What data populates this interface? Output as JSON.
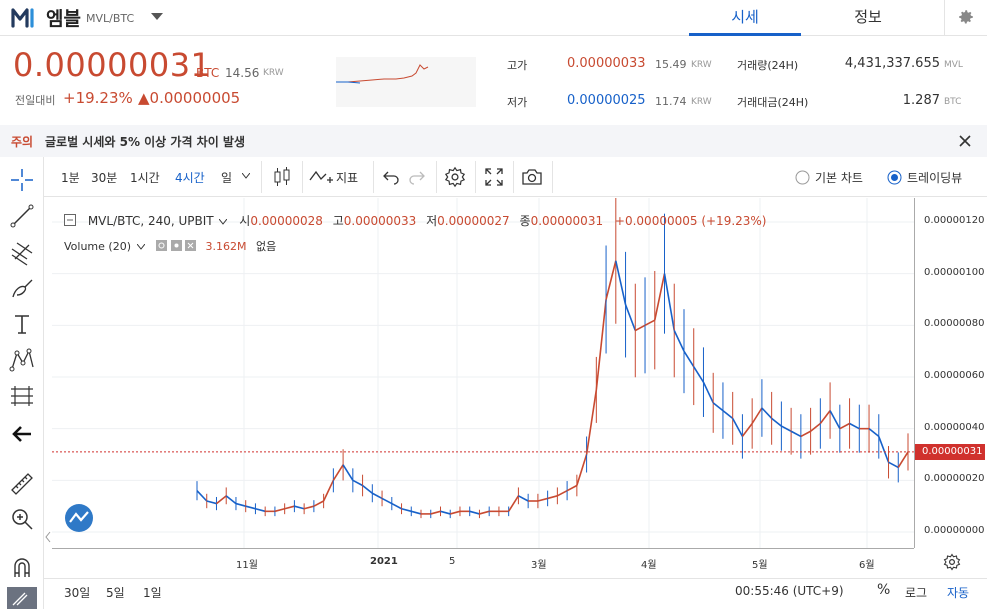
{
  "header": {
    "coin_name": "엠블",
    "coin_pair": "MVL/BTC",
    "tabs": [
      {
        "label": "시세"
      },
      {
        "label": "정보"
      }
    ]
  },
  "summary": {
    "price": "0.00000031",
    "price_unit": "BTC",
    "price_krw": "14.56",
    "krw_unit": "KRW",
    "change_label": "전일대비",
    "change_pct": "+19.23%",
    "change_value": "▲0.00000005",
    "high_label": "고가",
    "high_value": "0.00000033",
    "high_krw": "15.49",
    "low_label": "저가",
    "low_value": "0.00000025",
    "low_krw": "11.74",
    "volume_label": "거래량(24H)",
    "volume_value": "4,431,337.655",
    "volume_unit": "MVL",
    "amount_label": "거래대금(24H)",
    "amount_value": "1.287",
    "amount_unit": "BTC"
  },
  "warning": {
    "tag": "주의",
    "text": "글로벌 시세와 5% 이상 가격 차이 발생"
  },
  "toolbar": {
    "intervals": [
      "1분",
      "30분",
      "1시간",
      "4시간",
      "일"
    ],
    "indicators_label": "지표",
    "basic_chart_label": "기본 차트",
    "tradingview_label": "트레이딩뷰"
  },
  "legend": {
    "symbol": "MVL/BTC, 240, UPBIT",
    "open_label": "시",
    "open": "0.00000028",
    "high_label": "고",
    "high": "0.00000033",
    "low_label": "저",
    "low": "0.00000027",
    "close_label": "종",
    "close": "0.00000031",
    "change": "+0.00000005 (+19.23%)",
    "volume_label": "Volume (20)",
    "volume_value": "3.162M",
    "volume_extra": "없음"
  },
  "bottom": {
    "ranges": [
      "30일",
      "5일",
      "1일"
    ],
    "time": "00:55:46 (UTC+9)",
    "percent": "%",
    "log": "로그",
    "auto": "자동"
  },
  "colors": {
    "up": "#c84a31",
    "down": "#1761c9",
    "accent": "#1761c9"
  },
  "chart_data": {
    "type": "line",
    "title": "",
    "y_tick_labels": [
      "0.00000120",
      "0.00000100",
      "0.00000080",
      "0.00000060",
      "0.00000040",
      "0.00000020",
      "0.00000000"
    ],
    "x_tick_labels": [
      "11월",
      "2021",
      "5",
      "3월",
      "4월",
      "5월",
      "6월"
    ],
    "last_price_label": "0.00000031",
    "ylim": [
      0,
      1.25e-06
    ],
    "series": [
      {
        "values": [
          1.6e-07,
          1.2e-07,
          1.1e-07,
          1.4e-07,
          1.1e-07,
          1e-07,
          9e-08,
          8e-08,
          8e-08,
          9e-08,
          1e-07,
          9e-08,
          1e-07,
          1.2e-07,
          2e-07,
          2.6e-07,
          2e-07,
          1.8e-07,
          1.5e-07,
          1.3e-07,
          1.1e-07,
          9e-08,
          8e-08,
          7e-08,
          7e-08,
          8e-08,
          7e-08,
          8e-08,
          8e-08,
          7e-08,
          8e-08,
          8e-08,
          8e-08,
          1.4e-07,
          1.2e-07,
          1.2e-07,
          1.3e-07,
          1.4e-07,
          1.6e-07,
          1.8e-07,
          3e-07,
          5.5e-07,
          9e-07,
          1.05e-06,
          8.8e-07,
          7.8e-07,
          8e-07,
          8.2e-07,
          1e-06,
          7.8e-07,
          7e-07,
          6.4e-07,
          5.8e-07,
          5e-07,
          4.7e-07,
          4.4e-07,
          3.7e-07,
          4.2e-07,
          4.8e-07,
          4.4e-07,
          4.1e-07,
          3.9e-07,
          3.7e-07,
          3.9e-07,
          4.2e-07,
          4.7e-07,
          4e-07,
          4.2e-07,
          4e-07,
          4e-07,
          3.7e-07,
          2.7e-07,
          2.5e-07,
          3.1e-07
        ]
      }
    ]
  }
}
